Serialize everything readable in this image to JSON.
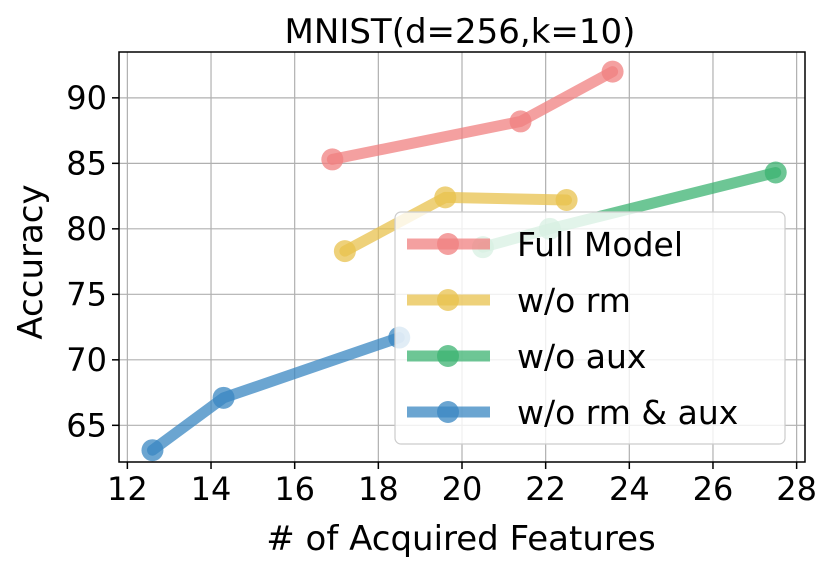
{
  "chart_data": {
    "type": "line",
    "title": "MNIST(d=256,k=10)",
    "xlabel": "# of Acquired Features",
    "ylabel": "Accuracy",
    "xlim": [
      11.8,
      28.2
    ],
    "ylim": [
      62.2,
      93.5
    ],
    "xticks": [
      12,
      14,
      16,
      18,
      20,
      22,
      24,
      26,
      28
    ],
    "yticks": [
      65,
      70,
      75,
      80,
      85,
      90
    ],
    "grid": true,
    "legend": "lower-right",
    "series": [
      {
        "name": "Full Model",
        "color": "#f08080",
        "x": [
          16.9,
          21.4,
          23.6
        ],
        "y": [
          85.3,
          88.2,
          92.0
        ]
      },
      {
        "name": "w/o rm",
        "color": "#e8c14d",
        "x": [
          17.2,
          19.6,
          22.5
        ],
        "y": [
          78.3,
          82.4,
          82.2
        ]
      },
      {
        "name": "w/o aux",
        "color": "#3cb371",
        "x": [
          20.5,
          22.1,
          27.5
        ],
        "y": [
          78.6,
          80.0,
          84.3
        ]
      },
      {
        "name": "w/o rm & aux",
        "color": "#3a87c2",
        "x": [
          12.6,
          14.3,
          18.5
        ],
        "y": [
          63.1,
          67.1,
          71.7
        ]
      }
    ]
  }
}
